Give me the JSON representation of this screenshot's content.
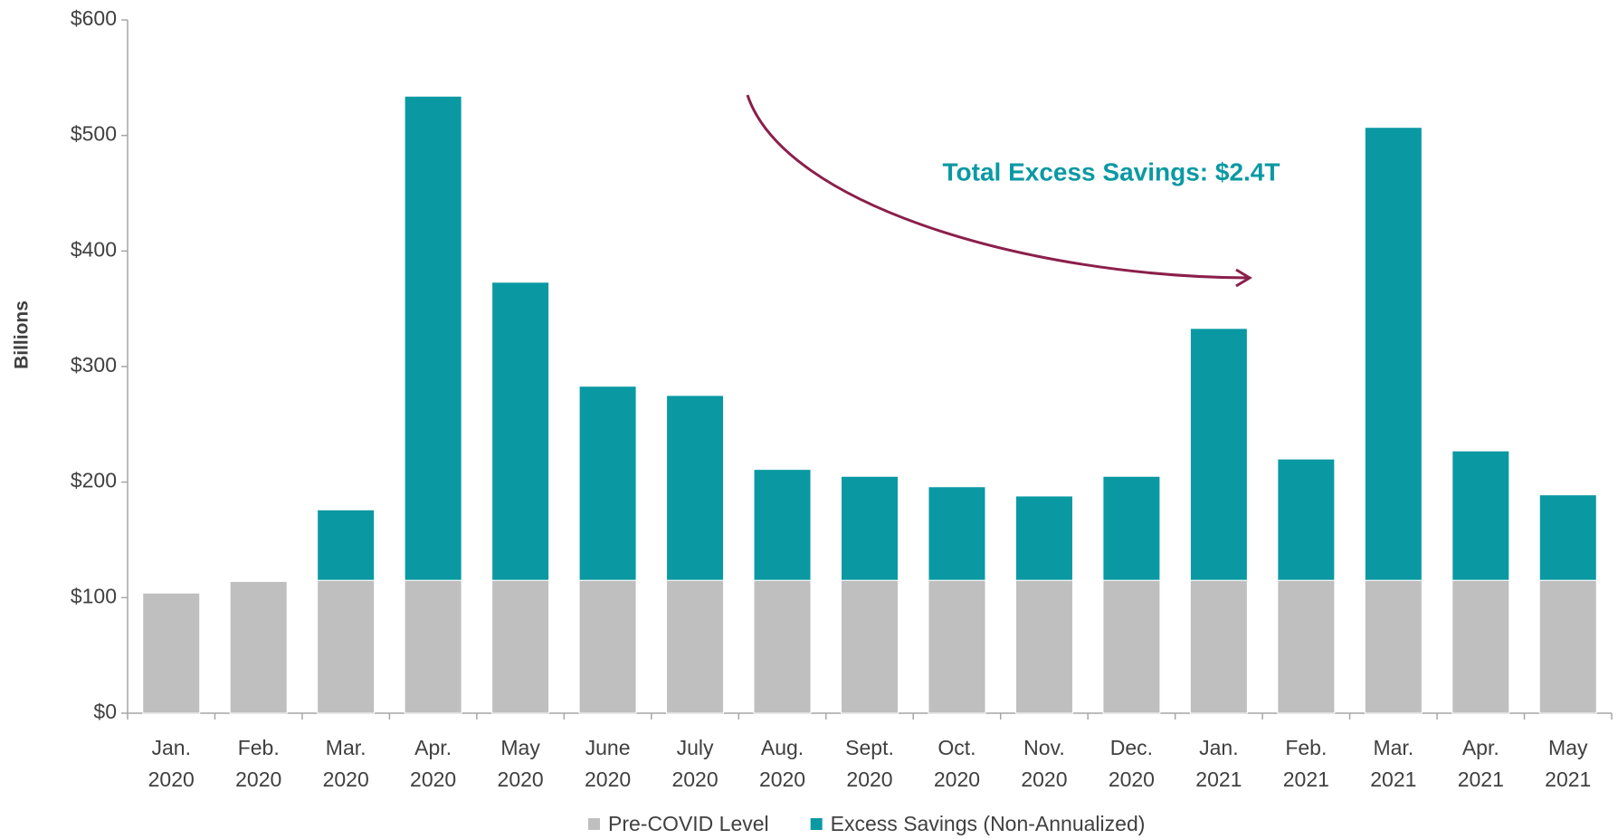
{
  "chart_data": {
    "type": "bar",
    "stacked": true,
    "y_label": "Billions",
    "categories": [
      [
        "Jan.",
        "2020"
      ],
      [
        "Feb.",
        "2020"
      ],
      [
        "Mar.",
        "2020"
      ],
      [
        "Apr.",
        "2020"
      ],
      [
        "May",
        "2020"
      ],
      [
        "June",
        "2020"
      ],
      [
        "July",
        "2020"
      ],
      [
        "Aug.",
        "2020"
      ],
      [
        "Sept.",
        "2020"
      ],
      [
        "Oct.",
        "2020"
      ],
      [
        "Nov.",
        "2020"
      ],
      [
        "Dec.",
        "2020"
      ],
      [
        "Jan.",
        "2021"
      ],
      [
        "Feb.",
        "2021"
      ],
      [
        "Mar.",
        "2021"
      ],
      [
        "Apr.",
        "2021"
      ],
      [
        "May",
        "2021"
      ]
    ],
    "series": [
      {
        "name": "Pre-COVID Level",
        "color": "#bfbfbf",
        "values": [
          104,
          114,
          115,
          115,
          115,
          115,
          115,
          115,
          115,
          115,
          115,
          115,
          115,
          115,
          115,
          115,
          115
        ]
      },
      {
        "name": "Excess Savings (Non-Annualized)",
        "color": "#0a99a3",
        "values": [
          null,
          null,
          61,
          419,
          258,
          168,
          160,
          96,
          90,
          81,
          73,
          90,
          218,
          105,
          392,
          112,
          74
        ]
      }
    ],
    "ylim": [
      0,
      600
    ],
    "yticks": [
      {
        "value": 0,
        "label": "$0"
      },
      {
        "value": 100,
        "label": "$100"
      },
      {
        "value": 200,
        "label": "$200"
      },
      {
        "value": 300,
        "label": "$300"
      },
      {
        "value": 400,
        "label": "$400"
      },
      {
        "value": 500,
        "label": "$500"
      },
      {
        "value": 600,
        "label": "$600"
      }
    ],
    "grid": false,
    "legend": "bottom",
    "annotations": [
      {
        "text": "Total Excess Savings: $2.4T",
        "color": "#0a99a3"
      }
    ]
  }
}
